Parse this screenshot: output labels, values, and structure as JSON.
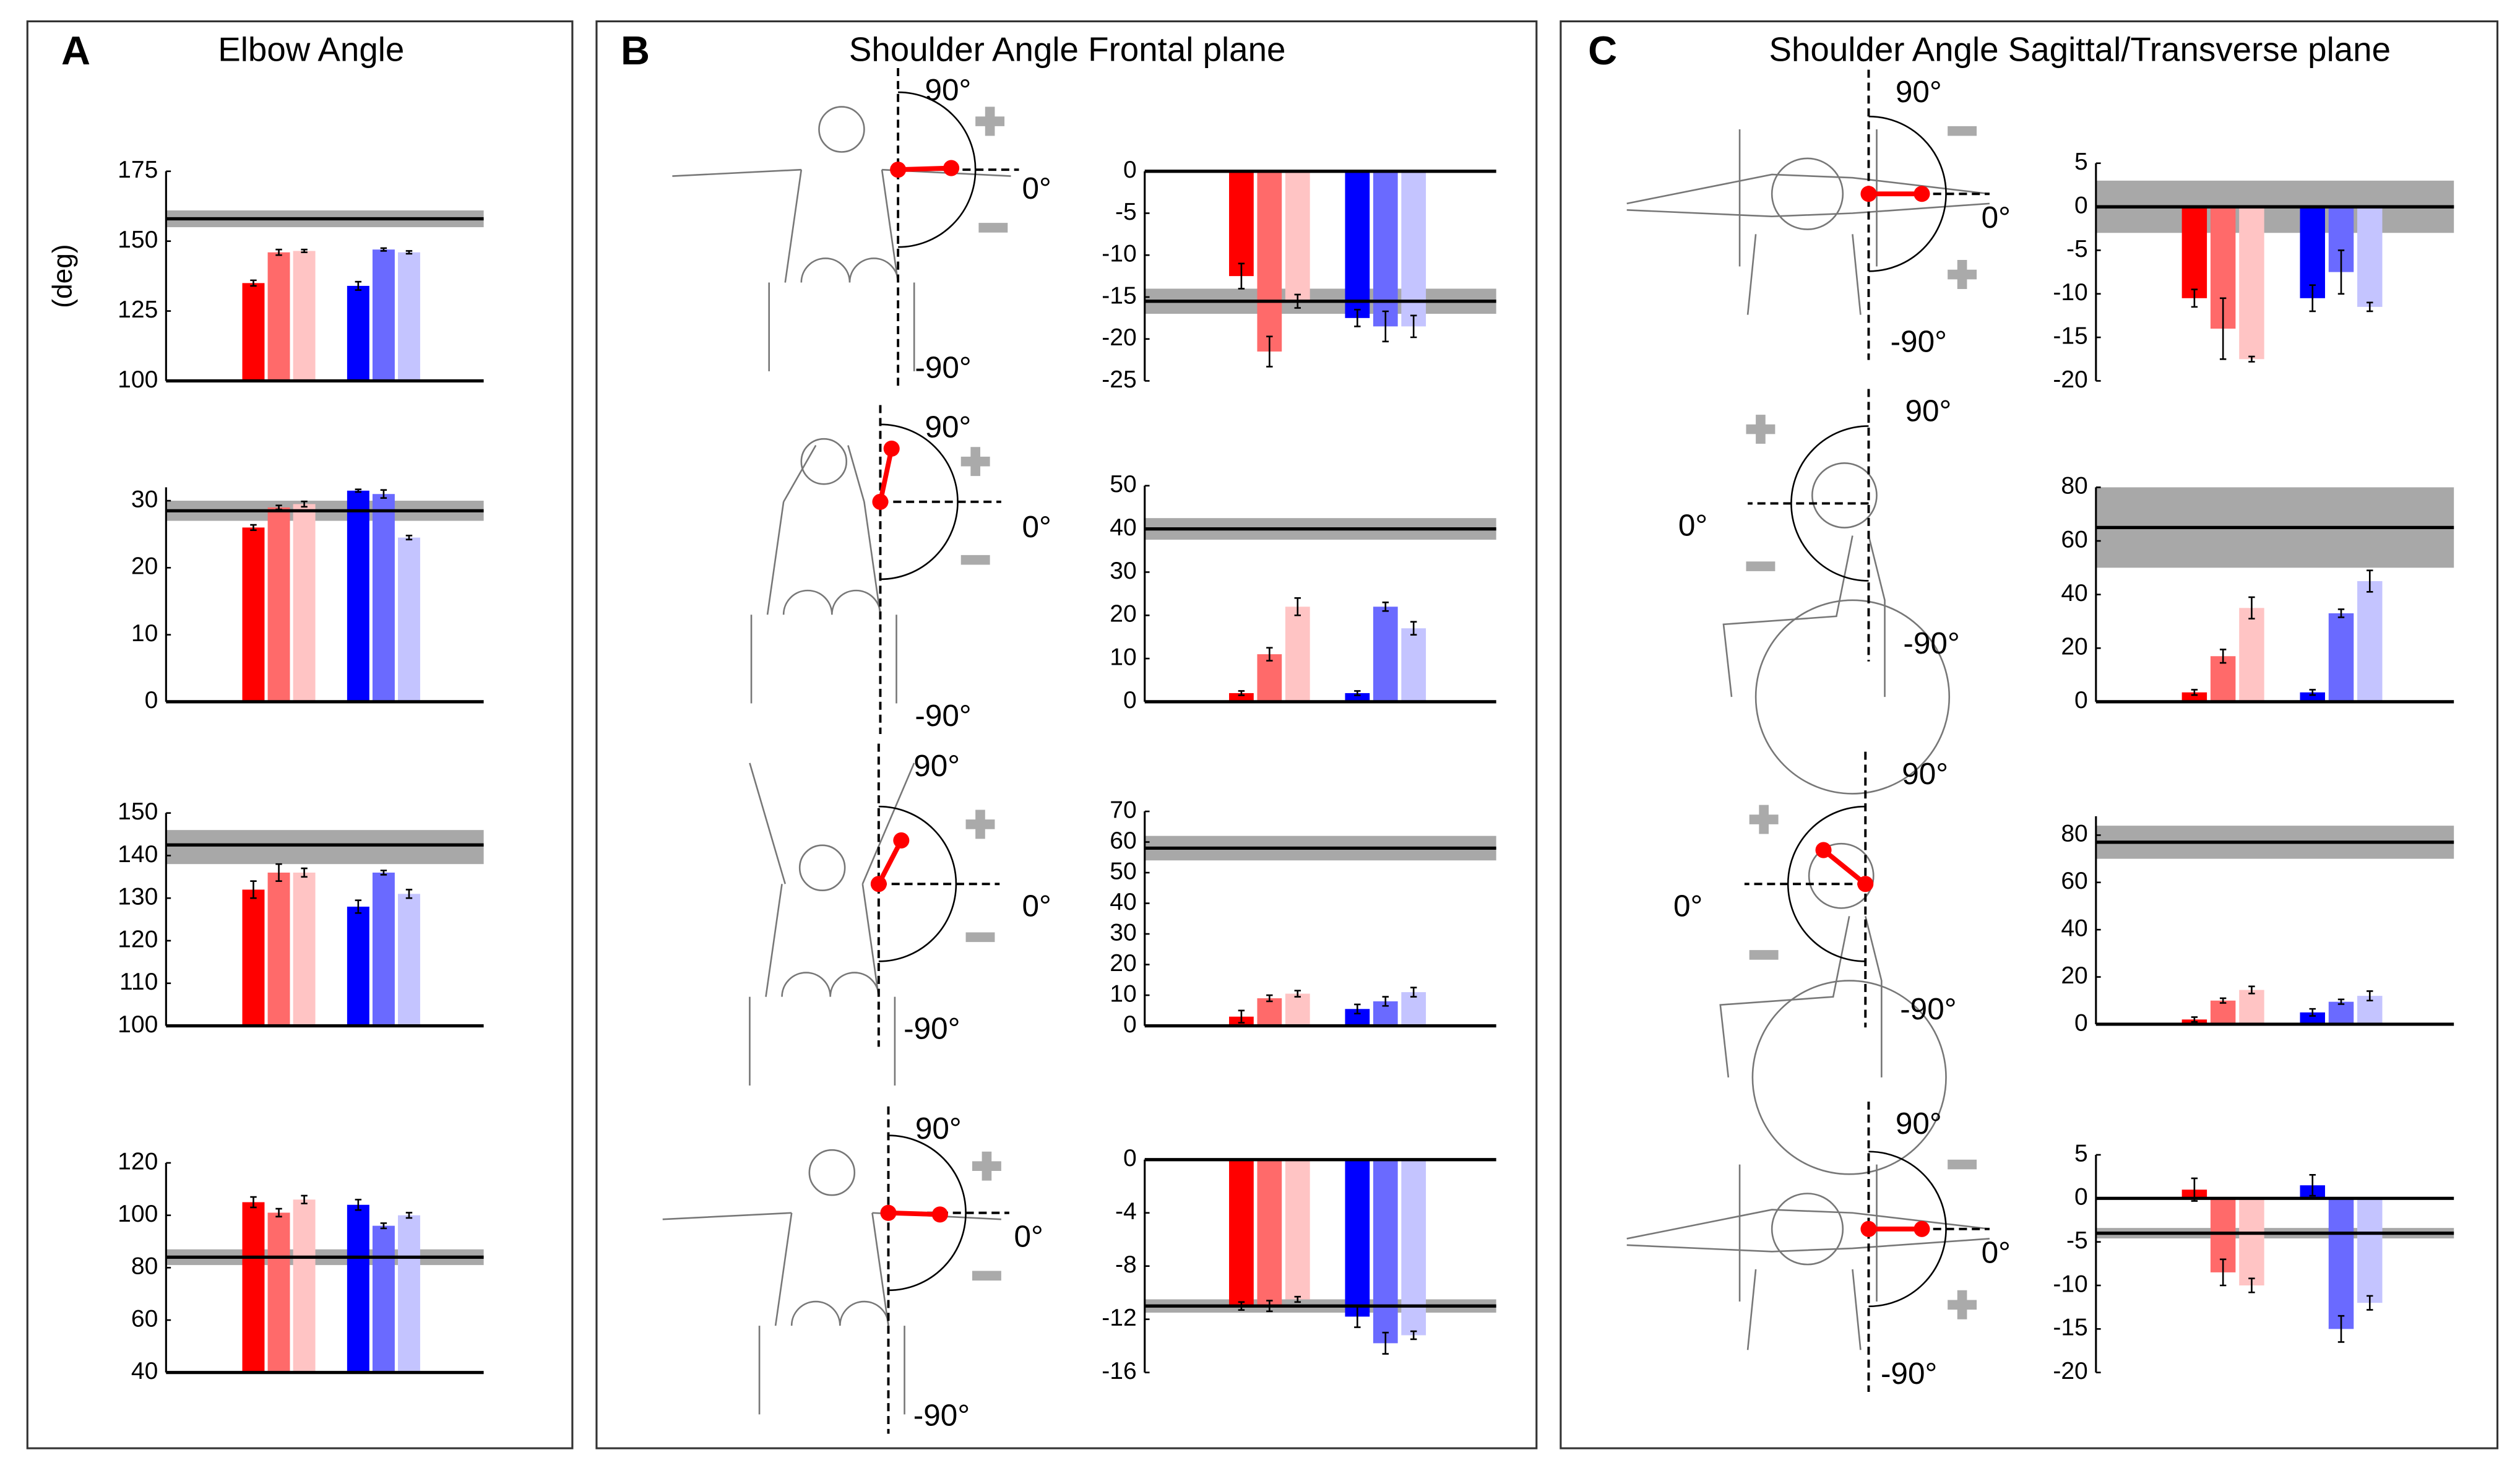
{
  "chart_data": [
    {
      "type": "bar",
      "panel": "A",
      "title": "Elbow Angle",
      "ylabel": "(deg)",
      "ylim": [
        100,
        175
      ],
      "yticks": [
        100,
        125,
        150,
        175
      ],
      "values": [
        135,
        146,
        146.5,
        134,
        147,
        146
      ],
      "errors": [
        1,
        1,
        0.5,
        1.5,
        0.5,
        0.5
      ],
      "colors": [
        "#ff0000",
        "#ff6a6a",
        "#ffc4c4",
        "#0000ff",
        "#6a6aff",
        "#c4c4ff"
      ],
      "reference": 158,
      "reference_band": [
        155,
        161
      ]
    },
    {
      "type": "bar",
      "ylim": [
        0,
        32
      ],
      "yticks": [
        0,
        10,
        20,
        30
      ],
      "values": [
        26,
        29,
        29.5,
        31.5,
        31,
        24.5
      ],
      "errors": [
        0.4,
        0.3,
        0.4,
        0.2,
        0.6,
        0.3
      ],
      "colors": [
        "#ff0000",
        "#ff6a6a",
        "#ffc4c4",
        "#0000ff",
        "#6a6aff",
        "#c4c4ff"
      ],
      "reference": 28.5,
      "reference_band": [
        27,
        30
      ]
    },
    {
      "type": "bar",
      "ylim": [
        100,
        150
      ],
      "yticks": [
        100,
        110,
        120,
        130,
        140,
        150
      ],
      "values": [
        132,
        136,
        136,
        128,
        136,
        131
      ],
      "errors": [
        2,
        2,
        1,
        1.5,
        0.5,
        1
      ],
      "colors": [
        "#ff0000",
        "#ff6a6a",
        "#ffc4c4",
        "#0000ff",
        "#6a6aff",
        "#c4c4ff"
      ],
      "reference": 142.5,
      "reference_band": [
        138,
        146
      ]
    },
    {
      "type": "bar",
      "ylim": [
        40,
        120
      ],
      "yticks": [
        40,
        60,
        80,
        100,
        120
      ],
      "values": [
        105,
        101,
        106,
        104,
        96,
        100
      ],
      "errors": [
        2,
        1.5,
        1.5,
        2,
        1,
        1
      ],
      "colors": [
        "#ff0000",
        "#ff6a6a",
        "#ffc4c4",
        "#0000ff",
        "#6a6aff",
        "#c4c4ff"
      ],
      "reference": 84,
      "reference_band": [
        81,
        87
      ]
    },
    {
      "type": "bar",
      "panel": "B",
      "title": "Shoulder Angle Frontal plane",
      "ylim": [
        -25,
        0
      ],
      "yticks": [
        0,
        -5,
        -10,
        -15,
        -20,
        -25
      ],
      "values": [
        -12.5,
        -21.5,
        -15.5,
        -17.5,
        -18.5,
        -18.5
      ],
      "errors": [
        1.5,
        1.8,
        0.8,
        1,
        1.8,
        1.3
      ],
      "colors": [
        "#ff0000",
        "#ff6a6a",
        "#ffc4c4",
        "#0000ff",
        "#6a6aff",
        "#c4c4ff"
      ],
      "reference": -15.5,
      "reference_band": [
        -17,
        -14
      ]
    },
    {
      "type": "bar",
      "ylim": [
        0,
        50
      ],
      "yticks": [
        0,
        10,
        20,
        30,
        40,
        50
      ],
      "values": [
        2,
        11,
        22,
        2,
        22,
        17
      ],
      "errors": [
        0.5,
        1.5,
        2,
        0.5,
        1,
        1.5
      ],
      "colors": [
        "#ff0000",
        "#ff6a6a",
        "#ffc4c4",
        "#0000ff",
        "#6a6aff",
        "#c4c4ff"
      ],
      "reference": 40,
      "reference_band": [
        37.5,
        42.5
      ]
    },
    {
      "type": "bar",
      "ylim": [
        0,
        70
      ],
      "yticks": [
        0,
        10,
        20,
        30,
        40,
        50,
        60,
        70
      ],
      "values": [
        3,
        9,
        10.5,
        5.5,
        8,
        11
      ],
      "errors": [
        2,
        1,
        1,
        1.5,
        1.5,
        1.5
      ],
      "colors": [
        "#ff0000",
        "#ff6a6a",
        "#ffc4c4",
        "#0000ff",
        "#6a6aff",
        "#c4c4ff"
      ],
      "reference": 58,
      "reference_band": [
        54,
        62
      ]
    },
    {
      "type": "bar",
      "ylim": [
        -16,
        0
      ],
      "yticks": [
        0,
        -4,
        -8,
        -12,
        -16
      ],
      "values": [
        -11,
        -11,
        -10.5,
        -11.8,
        -13.8,
        -13.2
      ],
      "errors": [
        0.3,
        0.4,
        0.2,
        0.8,
        0.8,
        0.3
      ],
      "colors": [
        "#ff0000",
        "#ff6a6a",
        "#ffc4c4",
        "#0000ff",
        "#6a6aff",
        "#c4c4ff"
      ],
      "reference": -11,
      "reference_band": [
        -11.5,
        -10.5
      ]
    },
    {
      "type": "bar",
      "panel": "C",
      "title": "Shoulder Angle Sagittal/Transverse plane",
      "ylim": [
        -20,
        5
      ],
      "yticks": [
        5,
        0,
        -5,
        -10,
        -15,
        -20
      ],
      "values": [
        -10.5,
        -14,
        -17.5,
        -10.5,
        -7.5,
        -11.5
      ],
      "errors": [
        1,
        3.5,
        0.3,
        1.5,
        2.5,
        0.5
      ],
      "colors": [
        "#ff0000",
        "#ff6a6a",
        "#ffc4c4",
        "#0000ff",
        "#6a6aff",
        "#c4c4ff"
      ],
      "reference": 0,
      "reference_band": [
        -3,
        3
      ]
    },
    {
      "type": "bar",
      "ylim": [
        0,
        80
      ],
      "yticks": [
        0,
        20,
        40,
        60,
        80
      ],
      "values": [
        3.5,
        17,
        35,
        3.5,
        33,
        45
      ],
      "errors": [
        1,
        2.5,
        4,
        1,
        1.5,
        4
      ],
      "colors": [
        "#ff0000",
        "#ff6a6a",
        "#ffc4c4",
        "#0000ff",
        "#6a6aff",
        "#c4c4ff"
      ],
      "reference": 65,
      "reference_band": [
        50,
        80
      ]
    },
    {
      "type": "bar",
      "ylim": [
        0,
        88
      ],
      "yticks": [
        0,
        20,
        40,
        60,
        80
      ],
      "values": [
        2,
        10,
        14.5,
        5,
        9.5,
        12
      ],
      "errors": [
        1,
        1,
        1.5,
        1.5,
        1,
        2
      ],
      "colors": [
        "#ff0000",
        "#ff6a6a",
        "#ffc4c4",
        "#0000ff",
        "#6a6aff",
        "#c4c4ff"
      ],
      "reference": 77,
      "reference_band": [
        70,
        84
      ]
    },
    {
      "type": "bar",
      "ylim": [
        -20,
        5
      ],
      "yticks": [
        5,
        0,
        -5,
        -10,
        -15,
        -20
      ],
      "values": [
        1,
        -8.5,
        -10,
        1.5,
        -15,
        -12
      ],
      "errors": [
        1.3,
        1.5,
        0.8,
        1.2,
        1.5,
        0.8
      ],
      "colors": [
        "#ff0000",
        "#ff6a6a",
        "#ffc4c4",
        "#0000ff",
        "#6a6aff",
        "#c4c4ff"
      ],
      "reference": -4,
      "reference_band": [
        -4.6,
        -3.4
      ]
    }
  ],
  "diagrams": [
    {
      "up": "90°",
      "right": "0°",
      "down": "-90°"
    },
    {
      "up": "90°",
      "right": "0°",
      "down": "-90°"
    },
    {
      "up": "90°",
      "right": "0°",
      "down": "-90°"
    },
    {
      "up": "90°",
      "right": "0°",
      "down": "-90°"
    },
    {
      "up": "90°",
      "right": "0°",
      "down": "-90°"
    },
    {
      "up": "90°",
      "left": "0°",
      "down": "-90°"
    },
    {
      "up": "90°",
      "left": "0°",
      "down": "-90°"
    },
    {
      "up": "90°",
      "right": "0°",
      "down": "-90°"
    }
  ]
}
